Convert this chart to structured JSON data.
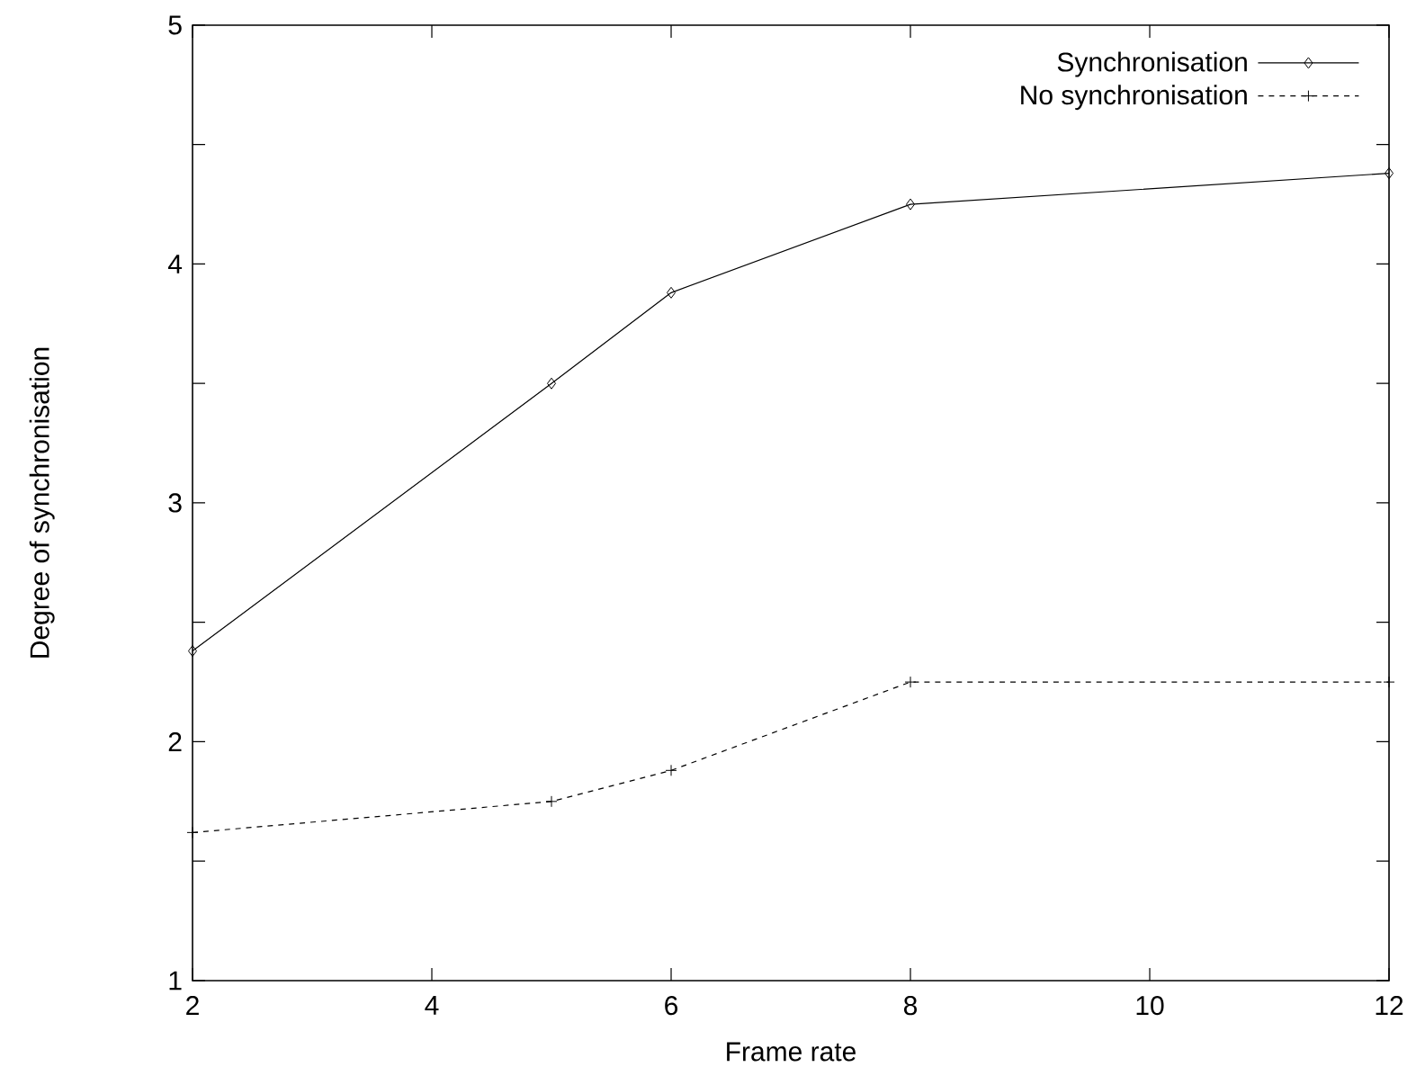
{
  "chart_data": {
    "type": "line",
    "xlabel": "Frame rate",
    "ylabel": "Degree of synchronisation",
    "x": [
      2,
      5,
      6,
      8,
      12
    ],
    "series": [
      {
        "name": "Synchronisation",
        "color": "#000000",
        "marker": "diamond",
        "line_style": "solid",
        "values": [
          2.38,
          3.5,
          3.88,
          4.25,
          4.38
        ]
      },
      {
        "name": "No synchronisation",
        "color": "#000000",
        "marker": "cross",
        "line_style": "dashed",
        "values": [
          1.62,
          1.75,
          1.88,
          2.25,
          2.25
        ]
      }
    ],
    "xlim": [
      2,
      12
    ],
    "ylim": [
      1,
      5
    ],
    "xticks": [
      2,
      4,
      6,
      8,
      10,
      12
    ],
    "yticks": [
      1,
      {
        "value": 1.5,
        "label": null
      },
      2,
      {
        "value": 2.5,
        "label": null
      },
      3,
      {
        "value": 3.5,
        "label": null
      },
      4,
      {
        "value": 4.5,
        "label": null
      },
      5
    ],
    "grid": false,
    "legend": "top right"
  }
}
